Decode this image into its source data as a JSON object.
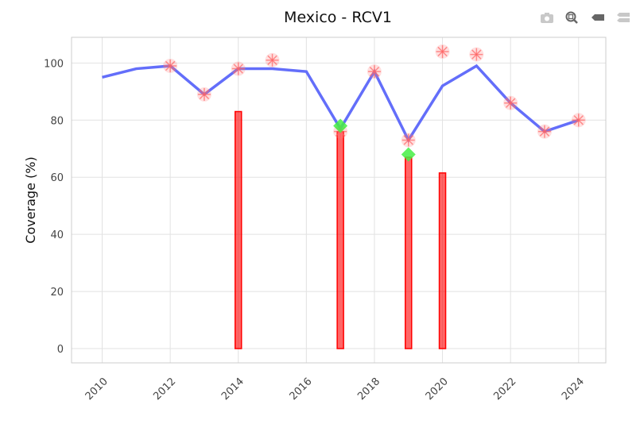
{
  "modebar": {
    "icons": [
      "camera-icon",
      "zoom-icon",
      "hover-closest-icon",
      "hover-compare-icon"
    ]
  },
  "chart_data": {
    "type": "line",
    "title": "Mexico - RCV1",
    "xlabel": "",
    "ylabel": "Coverage (%)",
    "xlim": [
      2009.1,
      2024.8
    ],
    "ylim": [
      -5,
      109
    ],
    "xticks": [
      2010,
      2012,
      2014,
      2016,
      2018,
      2020,
      2022,
      2024
    ],
    "yticks": [
      0,
      20,
      40,
      60,
      80,
      100
    ],
    "grid": true,
    "line": {
      "color": "#636efa",
      "x": [
        2010,
        2011,
        2012,
        2013,
        2014,
        2015,
        2016,
        2017,
        2018,
        2019,
        2020,
        2021,
        2022,
        2023,
        2024
      ],
      "y": [
        95,
        98,
        99,
        89,
        98,
        98,
        97,
        77,
        97,
        73,
        92,
        99,
        86,
        76,
        80
      ]
    },
    "asterisks": {
      "color": "#ff8080",
      "x": [
        2012,
        2013,
        2014,
        2015,
        2017,
        2018,
        2019,
        2020,
        2021,
        2022,
        2023,
        2024
      ],
      "y": [
        99,
        89,
        98,
        101,
        76,
        97,
        73,
        104,
        103,
        86,
        76,
        80
      ]
    },
    "bars": {
      "color": "#ff0000",
      "x": [
        2014,
        2017,
        2019,
        2020
      ],
      "y": [
        83,
        76,
        67,
        61.5
      ]
    },
    "diamonds": {
      "color": "#44ee44",
      "x": [
        2017,
        2019
      ],
      "y": [
        78,
        68
      ]
    }
  }
}
